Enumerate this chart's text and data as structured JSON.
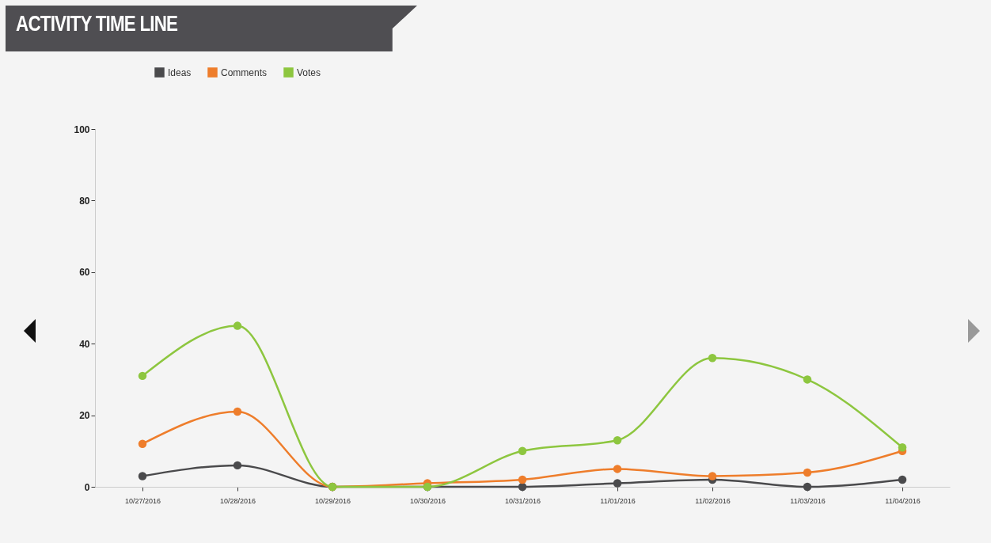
{
  "chart_data": {
    "type": "line",
    "title": "ACTIVITY TIME LINE",
    "categories": [
      "10/27/2016",
      "10/28/2016",
      "10/29/2016",
      "10/30/2016",
      "10/31/2016",
      "11/01/2016",
      "11/02/2016",
      "11/03/2016",
      "11/04/2016"
    ],
    "series": [
      {
        "name": "Ideas",
        "color": "#4a4a4c",
        "values": [
          3,
          6,
          0,
          0,
          0,
          1,
          2,
          0,
          2
        ]
      },
      {
        "name": "Comments",
        "color": "#ee7d2b",
        "values": [
          12,
          21,
          0,
          1,
          2,
          5,
          3,
          4,
          10
        ]
      },
      {
        "name": "Votes",
        "color": "#8dc63f",
        "values": [
          31,
          45,
          0,
          0,
          10,
          13,
          36,
          30,
          11
        ]
      }
    ],
    "ylim": [
      0,
      100
    ],
    "yticks": [
      0,
      20,
      40,
      60,
      80,
      100
    ],
    "grid": false,
    "legend": "top left",
    "marker": "circle",
    "line_style": "solid"
  }
}
